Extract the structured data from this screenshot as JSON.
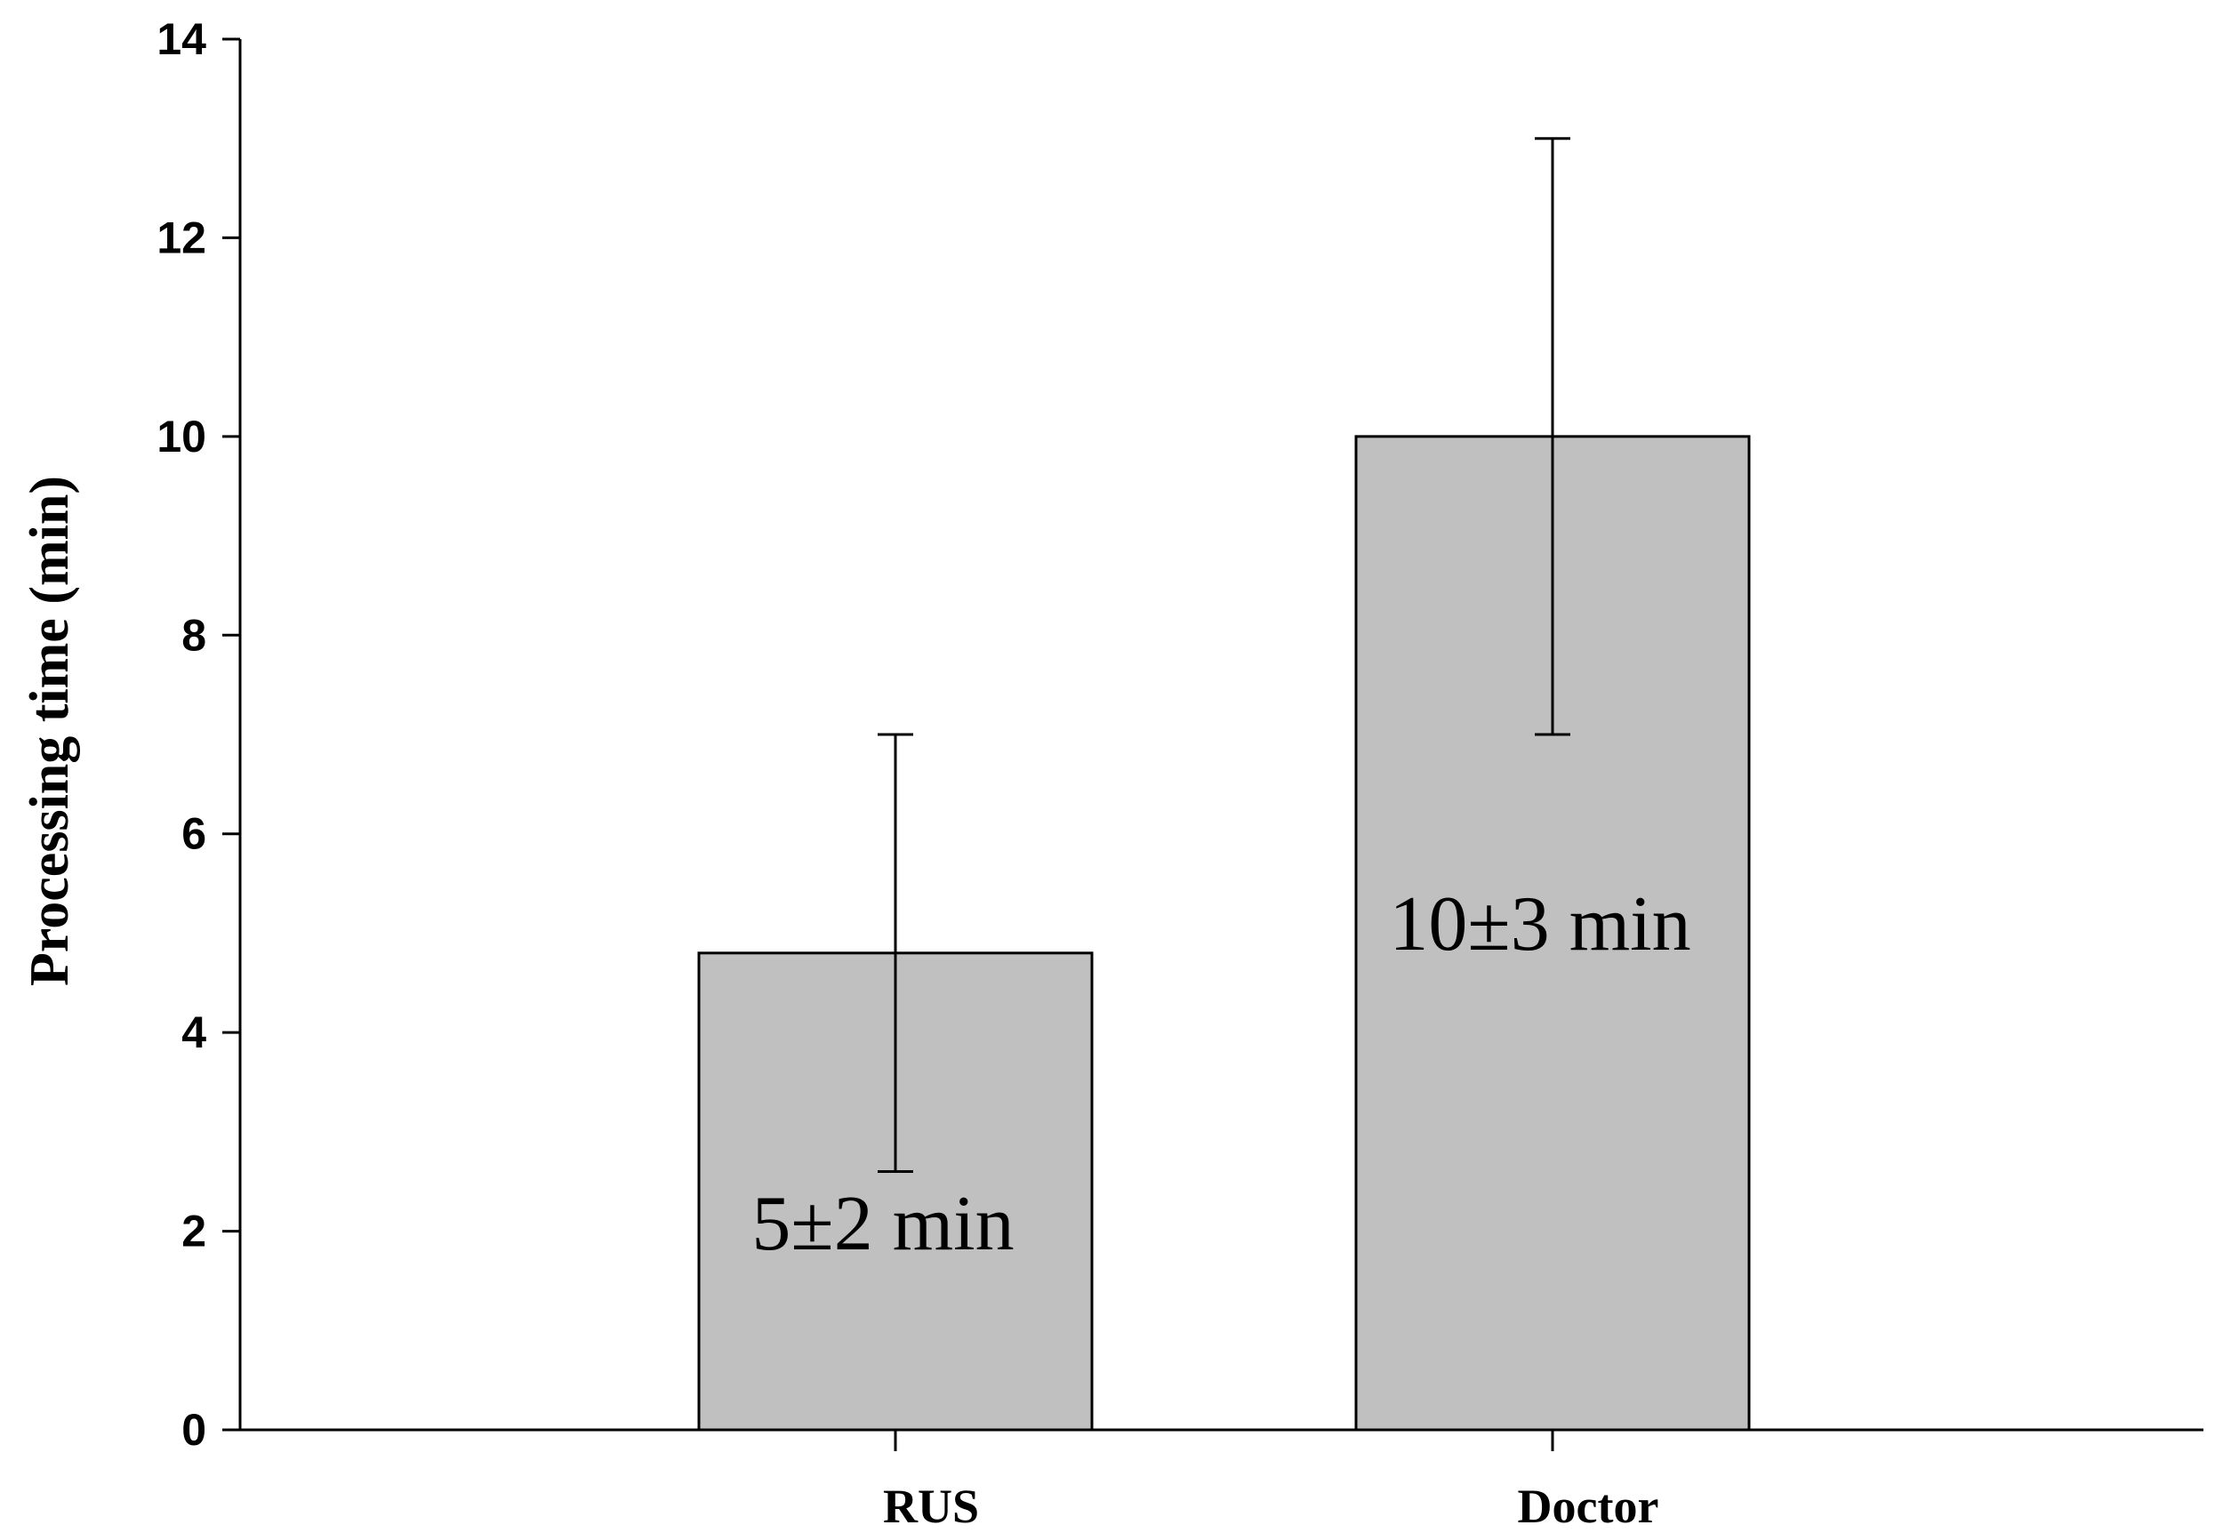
{
  "chart_data": {
    "type": "bar",
    "title": "",
    "xlabel": "",
    "ylabel": "Processing time (min)",
    "ylim": [
      0,
      14
    ],
    "yticks": [
      0,
      2,
      4,
      6,
      8,
      10,
      12,
      14
    ],
    "grid": false,
    "categories": [
      "RUS",
      "Doctor"
    ],
    "series": [
      {
        "values": [
          4.8,
          10.0
        ],
        "error_low": [
          2.6,
          7.0
        ],
        "error_high": [
          7.0,
          13.0
        ],
        "data_labels": [
          "5±2 min",
          "10±3 min"
        ],
        "color": "#c0c0c0"
      }
    ]
  }
}
